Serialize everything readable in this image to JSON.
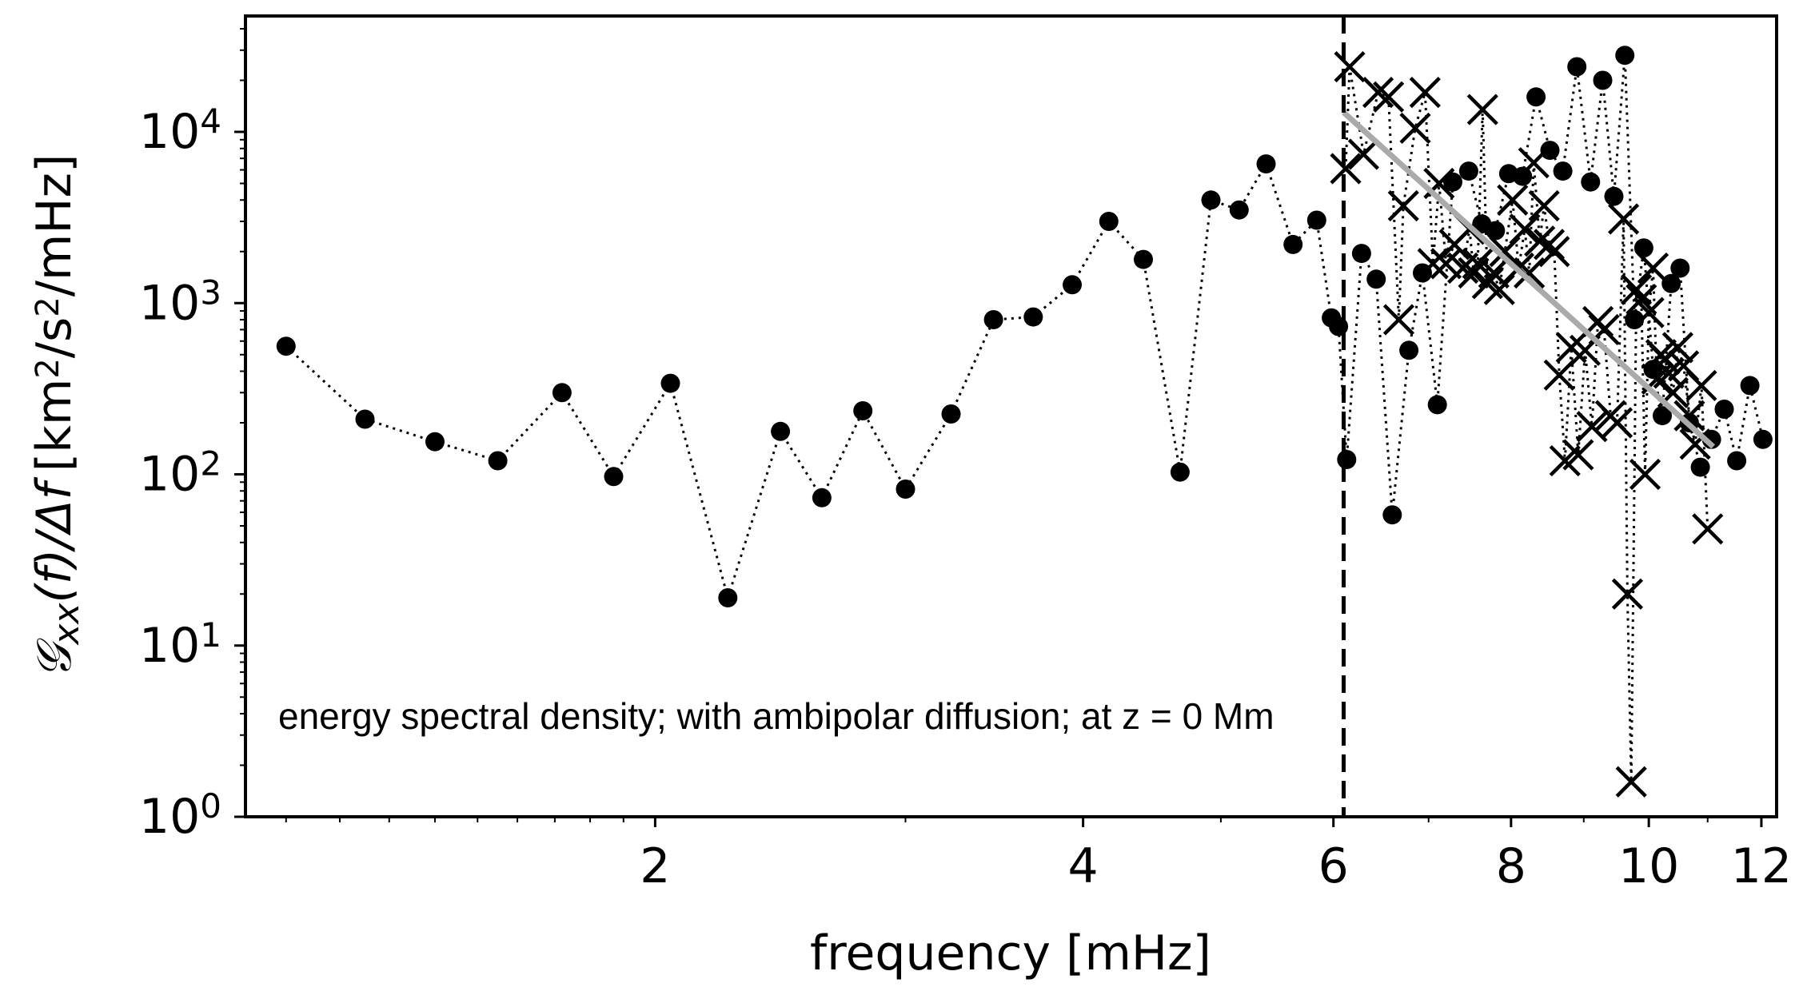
{
  "chart_data": {
    "type": "scatter",
    "title": "",
    "xlabel": "frequency [mHz]",
    "ylabel_parts": {
      "symbol": "𝒢",
      "subscript": "xx",
      "argument": "(f)/Δf",
      "units": "[km",
      "units_sup1": "2",
      "units_mid": "/s",
      "units_sup2": "2",
      "units_end": "/mHz]"
    },
    "x_scale": "log",
    "y_scale": "log",
    "xlim": [
      1.03,
      12.3
    ],
    "ylim": [
      1,
      40000
    ],
    "x_ticks": [
      {
        "value": 2,
        "label": "2"
      },
      {
        "value": 4,
        "label": "4"
      },
      {
        "value": 6,
        "label": "6"
      },
      {
        "value": 8,
        "label": "8"
      },
      {
        "value": 10,
        "label": "10"
      },
      {
        "value": 12,
        "label": "12"
      }
    ],
    "y_ticks": [
      {
        "value": 1,
        "base": "10",
        "exp": "0"
      },
      {
        "value": 10,
        "base": "10",
        "exp": "1"
      },
      {
        "value": 100,
        "base": "10",
        "exp": "2"
      },
      {
        "value": 1000,
        "base": "10",
        "exp": "3"
      },
      {
        "value": 10000,
        "base": "10",
        "exp": "4"
      }
    ],
    "annotation": "energy spectral density; with ambipolar diffusion; at z = 0 Mm",
    "cutoff_frequency": 6.1,
    "grid": false,
    "series": [
      {
        "marker": "circle",
        "line_style": "dotted",
        "color": "#000000",
        "x": [
          1.1,
          1.25,
          1.4,
          1.55,
          1.72,
          1.87,
          2.05,
          2.25,
          2.45,
          2.62,
          2.8,
          3.0,
          3.23,
          3.46,
          3.69,
          3.93,
          4.17,
          4.41,
          4.68,
          4.92,
          5.15,
          5.38,
          5.62,
          5.84,
          5.98,
          6.05,
          6.13,
          6.28,
          6.43,
          6.6,
          6.78,
          6.93,
          7.1,
          7.28,
          7.47,
          7.63,
          7.8,
          7.97,
          8.15,
          8.33,
          8.52,
          8.7,
          8.9,
          9.1,
          9.28,
          9.45,
          9.62,
          9.77,
          9.92,
          10.07,
          10.22,
          10.37,
          10.52,
          10.68,
          10.87,
          11.07,
          11.3,
          11.53,
          11.78,
          12.03
        ],
        "y": [
          560,
          210,
          155,
          120,
          300,
          97,
          340,
          19,
          178,
          73,
          235,
          82,
          225,
          800,
          830,
          1280,
          3000,
          1800,
          103,
          4000,
          3500,
          6500,
          2200,
          3050,
          820,
          730,
          122,
          1950,
          1380,
          58,
          530,
          1500,
          255,
          5100,
          5900,
          2900,
          2650,
          5700,
          5500,
          16000,
          7800,
          5900,
          24000,
          5100,
          20000,
          4200,
          28000,
          800,
          2100,
          410,
          220,
          1300,
          1600,
          200,
          110,
          160,
          240,
          120,
          330,
          160
        ]
      },
      {
        "marker": "x",
        "line_style": "dotted",
        "color": "#000000",
        "x": [
          6.12,
          6.16,
          6.3,
          6.45,
          6.56,
          6.67,
          6.72,
          6.85,
          6.96,
          7.05,
          7.12,
          7.2,
          7.3,
          7.4,
          7.48,
          7.53,
          7.58,
          7.64,
          7.7,
          7.78,
          7.85,
          7.92,
          8.02,
          8.1,
          8.18,
          8.24,
          8.3,
          8.38,
          8.44,
          8.51,
          8.58,
          8.65,
          8.73,
          8.82,
          8.92,
          9.02,
          9.12,
          9.21,
          9.3,
          9.4,
          9.5,
          9.6,
          9.66,
          9.72,
          9.8,
          9.88,
          9.94,
          10.0,
          10.07,
          10.13,
          10.2,
          10.26,
          10.33,
          10.4,
          10.48,
          10.58,
          10.68,
          10.78,
          10.89,
          11.0
        ],
        "y": [
          6100,
          24000,
          7400,
          17000,
          16000,
          800,
          3700,
          10500,
          17000,
          1700,
          5000,
          1700,
          2200,
          1600,
          2700,
          1500,
          1700,
          13500,
          1300,
          1500,
          1200,
          2000,
          4000,
          1600,
          2700,
          1500,
          6600,
          2300,
          3700,
          2200,
          2000,
          380,
          120,
          550,
          130,
          530,
          190,
          780,
          700,
          220,
          200,
          3100,
          20,
          1.6,
          1200,
          1050,
          100,
          880,
          1600,
          360,
          500,
          470,
          390,
          300,
          550,
          430,
          220,
          150,
          330,
          48
        ]
      },
      {
        "marker": "none",
        "line_style": "solid",
        "color": "#aaaaaa",
        "x": [
          6.1,
          11.1
        ],
        "y": [
          13000,
          145
        ]
      }
    ]
  }
}
